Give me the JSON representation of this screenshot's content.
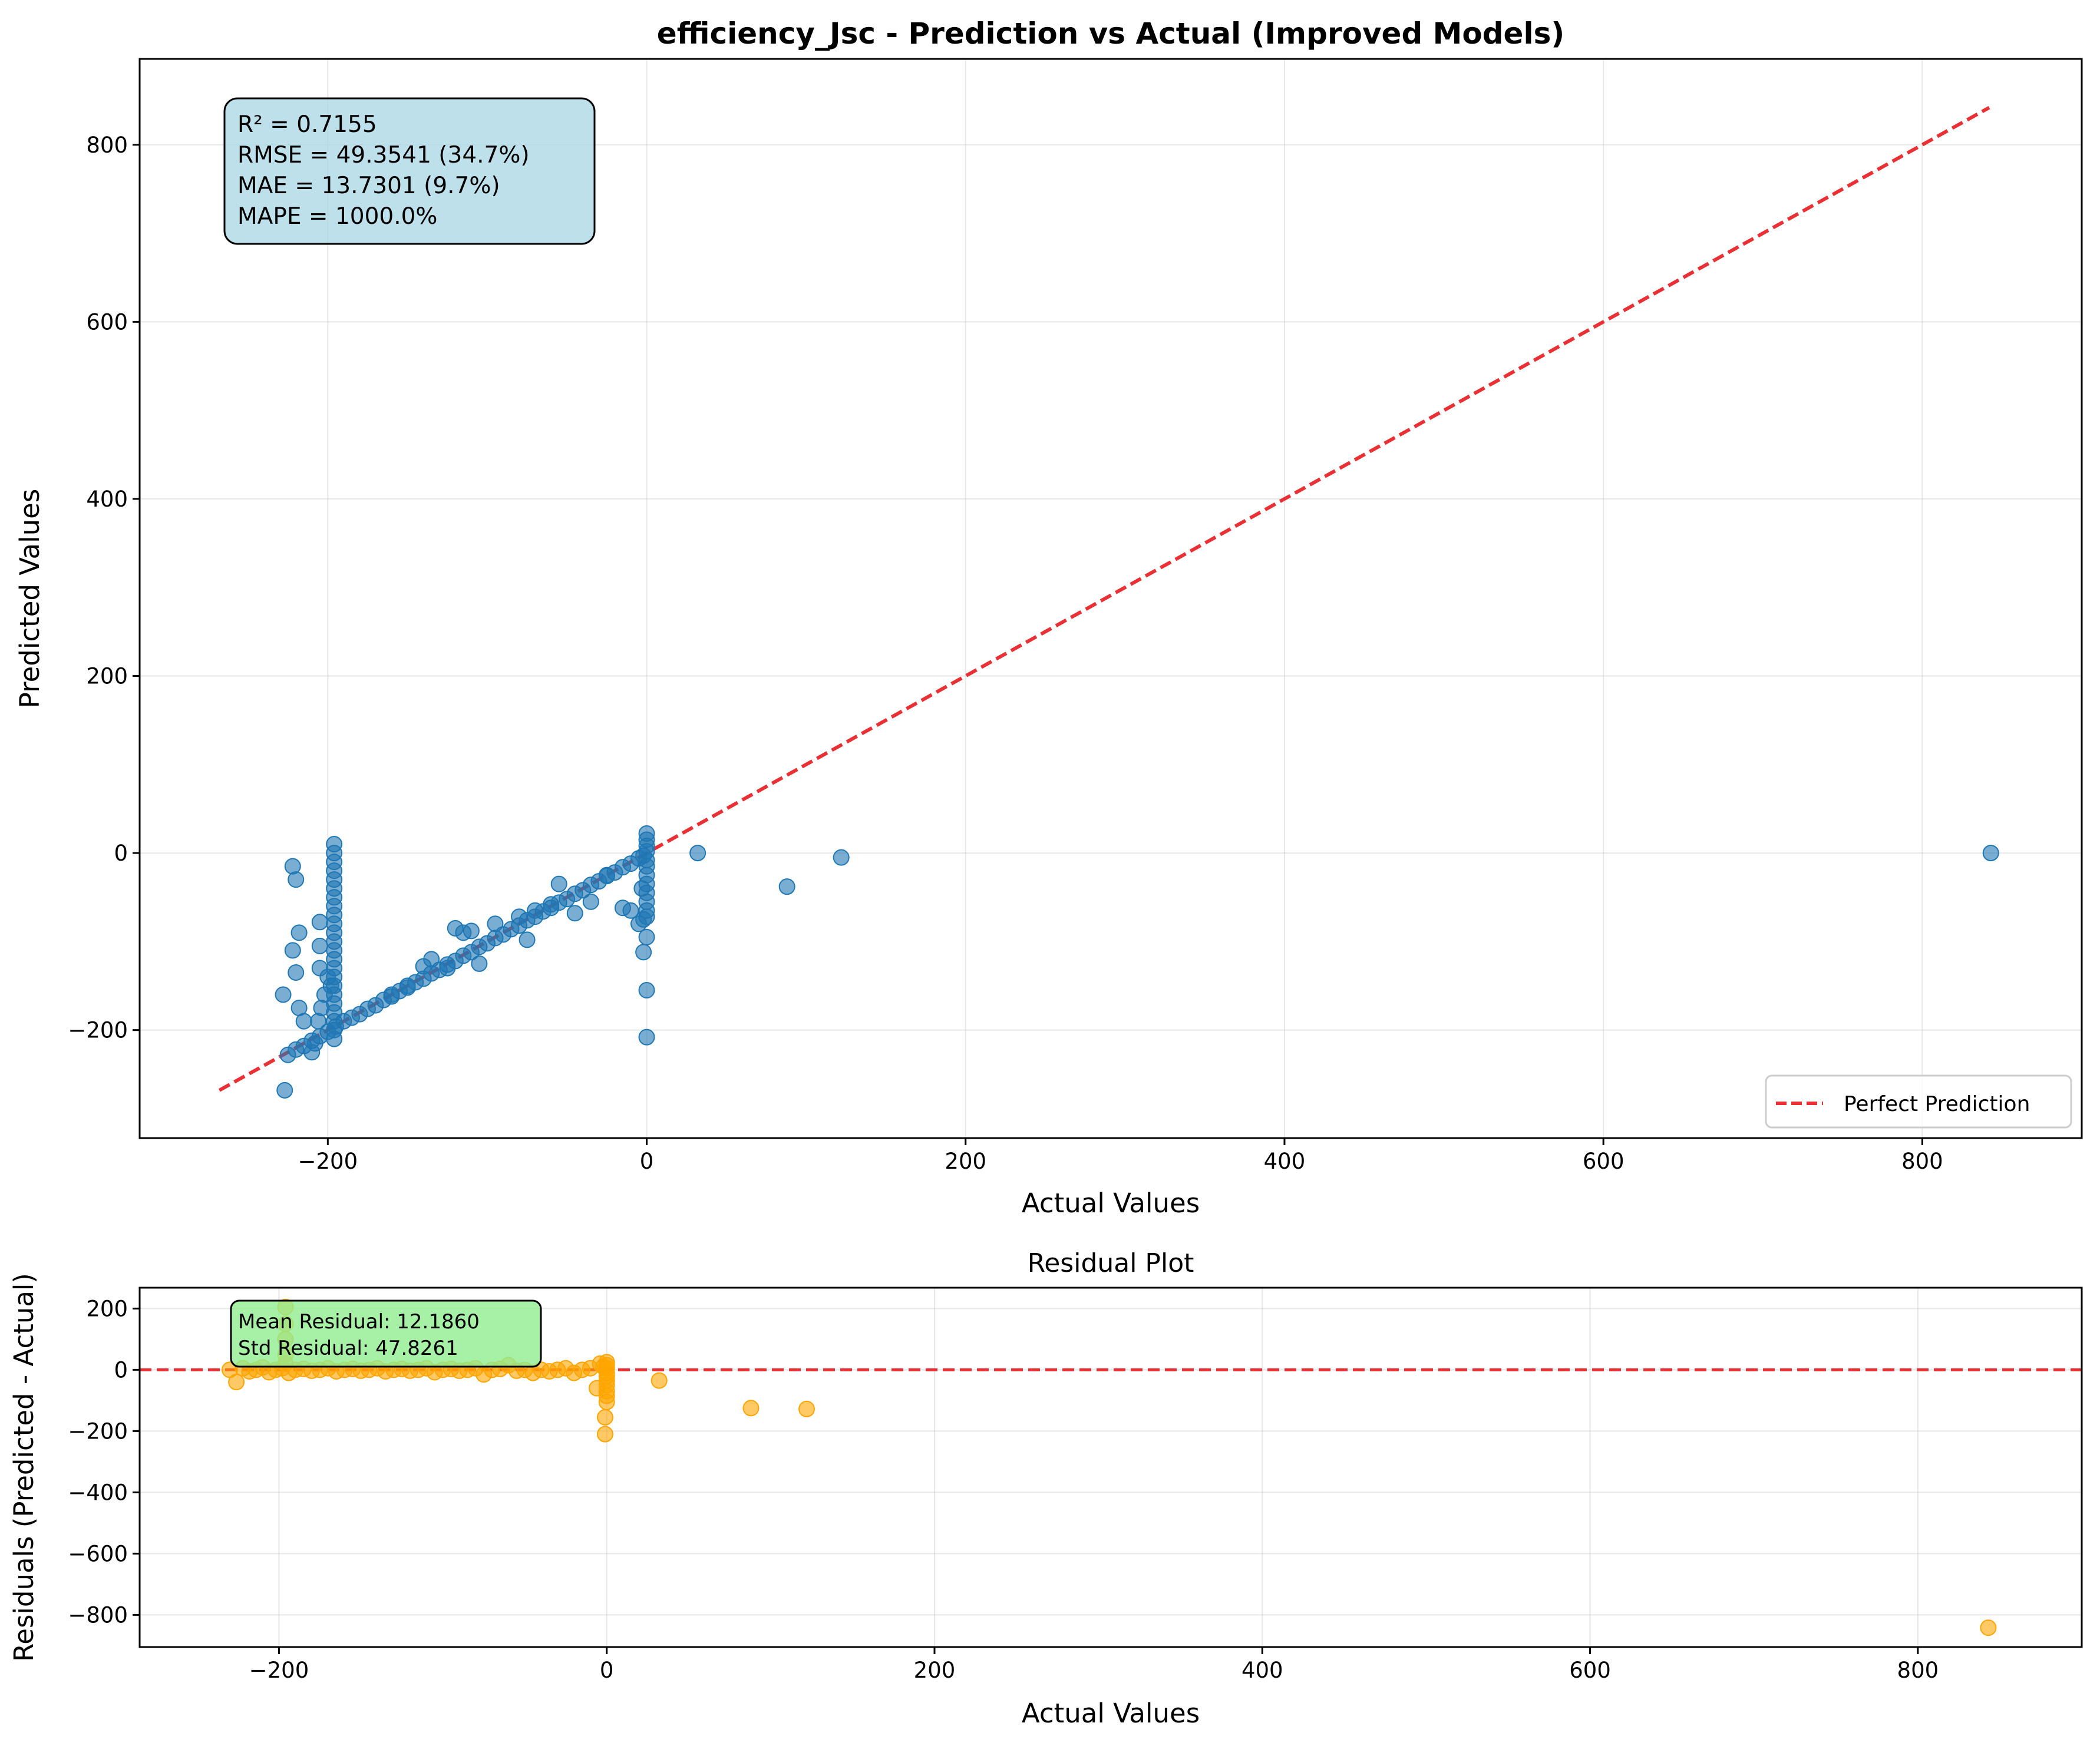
{
  "colors": {
    "scatter_main": "#1f77b4",
    "scatter_residual": "#ffa500",
    "reference_line": "#e8262a",
    "stats_box": "#add8e6",
    "residual_box": "#90ee90"
  },
  "chart_data": [
    {
      "type": "scatter",
      "title": "efficiency_Jsc - Prediction vs Actual (Improved Models)",
      "xlabel": "Actual Values",
      "ylabel": "Predicted Values",
      "xlim": [
        -318,
        900
      ],
      "ylim": [
        -322,
        897
      ],
      "xticks": [
        -200,
        0,
        200,
        400,
        600,
        800
      ],
      "xtick_labels": [
        "−200",
        "0",
        "200",
        "400",
        "600",
        "800"
      ],
      "yticks": [
        -200,
        0,
        200,
        400,
        600,
        800
      ],
      "ytick_labels": [
        "−200",
        "0",
        "200",
        "400",
        "600",
        "800"
      ],
      "grid": true,
      "legend": {
        "placement": "lower-right",
        "entries": [
          "Perfect Prediction"
        ]
      },
      "reference_line": {
        "name": "Perfect Prediction",
        "x": [
          -268,
          842
        ],
        "y": [
          -268,
          842
        ],
        "style": "dashed"
      },
      "stats_box": [
        "R² = 0.7155",
        "RMSE = 49.3541 (34.7%)",
        "MAE = 13.7301 (9.7%)",
        "MAPE = 1000.0%"
      ],
      "points": [
        [
          -225,
          -228
        ],
        [
          -220,
          -222
        ],
        [
          -215,
          -218
        ],
        [
          -210,
          -212
        ],
        [
          -205,
          -207
        ],
        [
          -200,
          -202
        ],
        [
          -195,
          -196
        ],
        [
          -190,
          -190
        ],
        [
          -185,
          -186
        ],
        [
          -180,
          -182
        ],
        [
          -175,
          -176
        ],
        [
          -170,
          -172
        ],
        [
          -165,
          -166
        ],
        [
          -160,
          -162
        ],
        [
          -155,
          -156
        ],
        [
          -150,
          -152
        ],
        [
          -145,
          -146
        ],
        [
          -140,
          -142
        ],
        [
          -135,
          -136
        ],
        [
          -130,
          -132
        ],
        [
          -125,
          -126
        ],
        [
          -120,
          -122
        ],
        [
          -115,
          -116
        ],
        [
          -110,
          -112
        ],
        [
          -105,
          -106
        ],
        [
          -100,
          -102
        ],
        [
          -95,
          -96
        ],
        [
          -90,
          -92
        ],
        [
          -85,
          -86
        ],
        [
          -80,
          -82
        ],
        [
          -75,
          -76
        ],
        [
          -70,
          -72
        ],
        [
          -65,
          -66
        ],
        [
          -60,
          -62
        ],
        [
          -55,
          -56
        ],
        [
          -50,
          -52
        ],
        [
          -45,
          -46
        ],
        [
          -40,
          -42
        ],
        [
          -35,
          -36
        ],
        [
          -30,
          -32
        ],
        [
          -25,
          -26
        ],
        [
          -20,
          -22
        ],
        [
          -15,
          -16
        ],
        [
          -10,
          -12
        ],
        [
          -5,
          -6
        ],
        [
          -2,
          -3
        ],
        [
          -120,
          -85
        ],
        [
          -115,
          -90
        ],
        [
          -110,
          -88
        ],
        [
          -125,
          -130
        ],
        [
          -105,
          -125
        ],
        [
          -95,
          -80
        ],
        [
          -80,
          -72
        ],
        [
          -70,
          -65
        ],
        [
          -60,
          -58
        ],
        [
          -55,
          -35
        ],
        [
          -45,
          -68
        ],
        [
          -35,
          -55
        ],
        [
          -25,
          -25
        ],
        [
          -15,
          -62
        ],
        [
          -75,
          -98
        ],
        [
          -160,
          -160
        ],
        [
          -150,
          -150
        ],
        [
          -140,
          -128
        ],
        [
          -135,
          -120
        ],
        [
          -196,
          10
        ],
        [
          -196,
          0
        ],
        [
          -196,
          -10
        ],
        [
          -196,
          -20
        ],
        [
          -196,
          -30
        ],
        [
          -196,
          -40
        ],
        [
          -196,
          -50
        ],
        [
          -196,
          -60
        ],
        [
          -196,
          -70
        ],
        [
          -196,
          -80
        ],
        [
          -196,
          -90
        ],
        [
          -196,
          -100
        ],
        [
          -196,
          -110
        ],
        [
          -196,
          -120
        ],
        [
          -196,
          -130
        ],
        [
          -196,
          -140
        ],
        [
          -196,
          -150
        ],
        [
          -196,
          -160
        ],
        [
          -196,
          -170
        ],
        [
          -196,
          -180
        ],
        [
          -196,
          -190
        ],
        [
          -196,
          -200
        ],
        [
          -196,
          -210
        ],
        [
          -198,
          -150
        ],
        [
          -200,
          -140
        ],
        [
          -202,
          -160
        ],
        [
          -204,
          -175
        ],
        [
          -206,
          -190
        ],
        [
          -208,
          -215
        ],
        [
          -210,
          -225
        ],
        [
          -215,
          -190
        ],
        [
          -218,
          -175
        ],
        [
          -220,
          -135
        ],
        [
          -222,
          -110
        ],
        [
          -218,
          -90
        ],
        [
          -220,
          -30
        ],
        [
          -222,
          -15
        ],
        [
          -205,
          -78
        ],
        [
          -205,
          -105
        ],
        [
          -205,
          -130
        ],
        [
          -228,
          -160
        ],
        [
          -227,
          -268
        ],
        [
          0,
          22
        ],
        [
          0,
          15
        ],
        [
          0,
          8
        ],
        [
          0,
          2
        ],
        [
          0,
          -8
        ],
        [
          0,
          -15
        ],
        [
          0,
          -25
        ],
        [
          0,
          -35
        ],
        [
          0,
          -45
        ],
        [
          0,
          -55
        ],
        [
          0,
          -65
        ],
        [
          0,
          -72
        ],
        [
          0,
          -95
        ],
        [
          -2,
          -112
        ],
        [
          0,
          -155
        ],
        [
          0,
          -208
        ],
        [
          -2,
          -75
        ],
        [
          -5,
          -80
        ],
        [
          -10,
          -65
        ],
        [
          -3,
          -40
        ],
        [
          32,
          0
        ],
        [
          88,
          -38
        ],
        [
          122,
          -5
        ],
        [
          843,
          0
        ]
      ]
    },
    {
      "type": "scatter",
      "title": "Residual Plot",
      "xlabel": "Actual Values",
      "ylabel": "Residuals (Predicted - Actual)",
      "xlim": [
        -285,
        900
      ],
      "ylim": [
        -905,
        268
      ],
      "xticks": [
        -200,
        0,
        200,
        400,
        600,
        800
      ],
      "xtick_labels": [
        "−200",
        "0",
        "200",
        "400",
        "600",
        "800"
      ],
      "yticks": [
        200,
        0,
        -200,
        -400,
        -600,
        -800
      ],
      "ytick_labels": [
        "200",
        "0",
        "−200",
        "−400",
        "−600",
        "−800"
      ],
      "grid": true,
      "zero_line": {
        "y": 0,
        "style": "dashed"
      },
      "residual_box": [
        "Mean Residual: 12.1860",
        "Std Residual: 47.8261"
      ],
      "points": [
        [
          -230,
          0
        ],
        [
          -226,
          -40
        ],
        [
          -222,
          5
        ],
        [
          -218,
          -5
        ],
        [
          -214,
          0
        ],
        [
          -210,
          8
        ],
        [
          -206,
          -8
        ],
        [
          -202,
          0
        ],
        [
          -198,
          5
        ],
        [
          -196,
          205
        ],
        [
          -196,
          150
        ],
        [
          -196,
          100
        ],
        [
          -196,
          50
        ],
        [
          -196,
          20
        ],
        [
          -194,
          -10
        ],
        [
          -190,
          0
        ],
        [
          -185,
          3
        ],
        [
          -180,
          -3
        ],
        [
          -175,
          0
        ],
        [
          -170,
          5
        ],
        [
          -165,
          -5
        ],
        [
          -160,
          0
        ],
        [
          -155,
          3
        ],
        [
          -150,
          -3
        ],
        [
          -145,
          0
        ],
        [
          -140,
          5
        ],
        [
          -135,
          -5
        ],
        [
          -130,
          0
        ],
        [
          -125,
          3
        ],
        [
          -120,
          -3
        ],
        [
          -115,
          0
        ],
        [
          -110,
          5
        ],
        [
          -105,
          -8
        ],
        [
          -100,
          0
        ],
        [
          -95,
          3
        ],
        [
          -90,
          -3
        ],
        [
          -85,
          0
        ],
        [
          -80,
          5
        ],
        [
          -75,
          -15
        ],
        [
          -70,
          0
        ],
        [
          -65,
          3
        ],
        [
          -60,
          15
        ],
        [
          -55,
          -3
        ],
        [
          -50,
          0
        ],
        [
          -45,
          -10
        ],
        [
          -40,
          0
        ],
        [
          -35,
          -5
        ],
        [
          -30,
          0
        ],
        [
          -25,
          5
        ],
        [
          -20,
          -10
        ],
        [
          -15,
          0
        ],
        [
          -10,
          5
        ],
        [
          -6,
          -60
        ],
        [
          -4,
          20
        ],
        [
          -2,
          10
        ],
        [
          0,
          25
        ],
        [
          0,
          15
        ],
        [
          0,
          5
        ],
        [
          0,
          -10
        ],
        [
          0,
          -20
        ],
        [
          0,
          -35
        ],
        [
          0,
          -50
        ],
        [
          0,
          -70
        ],
        [
          0,
          -85
        ],
        [
          0,
          -105
        ],
        [
          -1,
          -155
        ],
        [
          -1,
          -210
        ],
        [
          32,
          -35
        ],
        [
          88,
          -125
        ],
        [
          122,
          -128
        ],
        [
          843,
          -842
        ]
      ]
    }
  ]
}
